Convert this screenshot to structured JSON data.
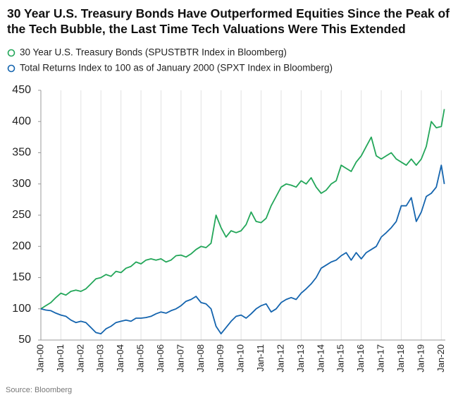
{
  "chart_data": {
    "type": "line",
    "title": "30 Year U.S. Treasury Bonds Have Outperformed Equities Since the Peak of the Tech Bubble, the Last Time Tech Valuations Were This Extended",
    "source": "Source: Bloomberg",
    "x": [
      2000,
      2000.25,
      2000.5,
      2000.75,
      2001,
      2001.25,
      2001.5,
      2001.75,
      2002,
      2002.25,
      2002.5,
      2002.75,
      2003,
      2003.25,
      2003.5,
      2003.75,
      2004,
      2004.25,
      2004.5,
      2004.75,
      2005,
      2005.25,
      2005.5,
      2005.75,
      2006,
      2006.25,
      2006.5,
      2006.75,
      2007,
      2007.25,
      2007.5,
      2007.75,
      2008,
      2008.25,
      2008.5,
      2008.75,
      2009,
      2009.25,
      2009.5,
      2009.75,
      2010,
      2010.25,
      2010.5,
      2010.75,
      2011,
      2011.25,
      2011.5,
      2011.75,
      2012,
      2012.25,
      2012.5,
      2012.75,
      2013,
      2013.25,
      2013.5,
      2013.75,
      2014,
      2014.25,
      2014.5,
      2014.75,
      2015,
      2015.25,
      2015.5,
      2015.75,
      2016,
      2016.25,
      2016.5,
      2016.75,
      2017,
      2017.25,
      2017.5,
      2017.75,
      2018,
      2018.25,
      2018.5,
      2018.75,
      2019,
      2019.25,
      2019.5,
      2019.75,
      2020,
      2020.15
    ],
    "series": [
      {
        "name": "30 Year U.S. Treasury Bonds (SPUSTBTR Index in Bloomberg)",
        "color": "#23a659",
        "values": [
          100,
          105,
          110,
          118,
          125,
          122,
          128,
          130,
          128,
          132,
          140,
          148,
          150,
          155,
          152,
          160,
          158,
          165,
          168,
          175,
          172,
          178,
          180,
          178,
          180,
          175,
          178,
          185,
          186,
          183,
          188,
          195,
          200,
          198,
          205,
          250,
          230,
          215,
          225,
          222,
          225,
          235,
          255,
          240,
          238,
          245,
          265,
          280,
          295,
          300,
          298,
          295,
          305,
          300,
          310,
          295,
          285,
          290,
          300,
          305,
          330,
          325,
          320,
          335,
          345,
          360,
          375,
          345,
          340,
          345,
          350,
          340,
          335,
          330,
          340,
          330,
          340,
          360,
          400,
          390,
          392,
          420
        ]
      },
      {
        "name": "Total Returns Index to 100 as of January 2000 (SPXT Index in Bloomberg)",
        "color": "#1464ae",
        "values": [
          100,
          98,
          97,
          93,
          90,
          88,
          82,
          78,
          80,
          78,
          70,
          62,
          60,
          68,
          72,
          78,
          80,
          82,
          80,
          85,
          85,
          86,
          88,
          92,
          95,
          93,
          97,
          100,
          105,
          112,
          115,
          120,
          110,
          108,
          100,
          72,
          60,
          70,
          80,
          88,
          90,
          85,
          92,
          100,
          105,
          108,
          95,
          100,
          110,
          115,
          118,
          115,
          125,
          132,
          140,
          150,
          165,
          170,
          175,
          178,
          185,
          190,
          178,
          190,
          180,
          190,
          195,
          200,
          215,
          222,
          230,
          240,
          265,
          265,
          278,
          240,
          255,
          280,
          285,
          295,
          330,
          300
        ]
      }
    ],
    "xlim": [
      2000,
      2020.2
    ],
    "xticks": [
      {
        "value": 2000,
        "label": "Jan-00"
      },
      {
        "value": 2001,
        "label": "Jan-01"
      },
      {
        "value": 2002,
        "label": "Jan-02"
      },
      {
        "value": 2003,
        "label": "Jan-03"
      },
      {
        "value": 2004,
        "label": "Jan-04"
      },
      {
        "value": 2005,
        "label": "Jan-05"
      },
      {
        "value": 2006,
        "label": "Jan-06"
      },
      {
        "value": 2007,
        "label": "Jan-07"
      },
      {
        "value": 2008,
        "label": "Jan-08"
      },
      {
        "value": 2009,
        "label": "Jan-09"
      },
      {
        "value": 2010,
        "label": "Jan-10"
      },
      {
        "value": 2011,
        "label": "Jan-11"
      },
      {
        "value": 2012,
        "label": "Jan-12"
      },
      {
        "value": 2013,
        "label": "Jan-13"
      },
      {
        "value": 2014,
        "label": "Jan-14"
      },
      {
        "value": 2015,
        "label": "Jan-15"
      },
      {
        "value": 2016,
        "label": "Jan-16"
      },
      {
        "value": 2017,
        "label": "Jan-17"
      },
      {
        "value": 2018,
        "label": "Jan-18"
      },
      {
        "value": 2019,
        "label": "Jan-19"
      },
      {
        "value": 2020,
        "label": "Jan-20"
      }
    ],
    "ylim": [
      50,
      450
    ],
    "yticks": [
      50,
      100,
      150,
      200,
      250,
      300,
      350,
      400,
      450
    ],
    "grid": true
  }
}
